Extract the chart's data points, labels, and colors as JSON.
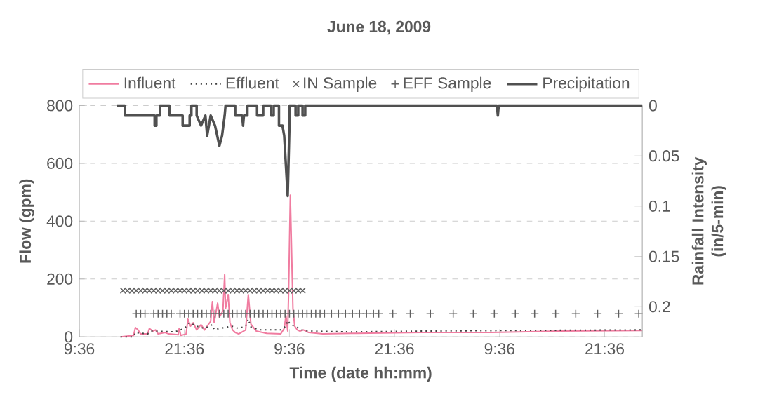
{
  "chart_data": {
    "type": "line",
    "title": "June 18, 2009",
    "xlabel": "Time (date hh:mm)",
    "ylabel": "Flow (gpm)",
    "y2label": "Rainfall Intensity (in/5-min)",
    "xlim": [
      "2009-06-18T09:36",
      "2009-06-21T01:54"
    ],
    "xticks": [
      {
        "value": "2009-06-18T09:36",
        "label": "9:36"
      },
      {
        "value": "2009-06-18T21:36",
        "label": "21:36"
      },
      {
        "value": "2009-06-19T09:36",
        "label": "9:36"
      },
      {
        "value": "2009-06-19T21:36",
        "label": "21:36"
      },
      {
        "value": "2009-06-20T09:36",
        "label": "9:36"
      },
      {
        "value": "2009-06-20T21:36",
        "label": "21:36"
      }
    ],
    "ylim": [
      0,
      800
    ],
    "yticks": [
      0,
      200,
      400,
      600,
      800
    ],
    "y2lim": [
      0.23,
      0
    ],
    "y2ticks": [
      0,
      0.05,
      0.1,
      0.15,
      0.2
    ],
    "grid": "y",
    "legend": "top",
    "series": [
      {
        "name": "Influent",
        "color": "#f07ca0",
        "x": [
          "2009-06-18T14:18",
          "2009-06-18T15:48",
          "2009-06-18T16:00",
          "2009-06-18T16:18",
          "2009-06-18T16:36",
          "2009-06-18T17:24",
          "2009-06-18T17:36",
          "2009-06-18T18:00",
          "2009-06-18T18:18",
          "2009-06-18T18:36",
          "2009-06-18T19:24",
          "2009-06-18T19:48",
          "2009-06-18T20:54",
          "2009-06-18T21:00",
          "2009-06-18T21:12",
          "2009-06-18T21:48",
          "2009-06-18T22:00",
          "2009-06-18T22:18",
          "2009-06-18T22:36",
          "2009-06-18T23:00",
          "2009-06-18T23:30",
          "2009-06-18T23:54",
          "2009-06-19T00:36",
          "2009-06-19T00:48",
          "2009-06-19T01:00",
          "2009-06-19T01:24",
          "2009-06-19T01:36",
          "2009-06-19T02:00",
          "2009-06-19T02:12",
          "2009-06-19T02:18",
          "2009-06-19T02:36",
          "2009-06-19T02:48",
          "2009-06-19T03:06",
          "2009-06-19T03:24",
          "2009-06-19T03:48",
          "2009-06-19T04:36",
          "2009-06-19T04:54",
          "2009-06-19T05:12",
          "2009-06-19T05:48",
          "2009-06-19T07:00",
          "2009-06-19T08:36",
          "2009-06-19T09:00",
          "2009-06-19T09:12",
          "2009-06-19T09:24",
          "2009-06-19T09:30",
          "2009-06-19T09:42",
          "2009-06-19T10:00",
          "2009-06-19T10:12",
          "2009-06-19T10:30",
          "2009-06-19T10:48",
          "2009-06-19T11:12",
          "2009-06-19T11:48",
          "2009-06-19T13:24",
          "2009-06-19T16:36",
          "2009-06-20T00:36",
          "2009-06-20T08:36",
          "2009-06-20T16:36",
          "2009-06-21T01:54"
        ],
        "values": [
          0,
          5,
          32,
          24,
          10,
          10,
          29,
          20,
          24,
          10,
          15,
          10,
          7,
          29,
          5,
          10,
          61,
          37,
          49,
          24,
          42,
          24,
          54,
          122,
          49,
          117,
          68,
          90,
          215,
          98,
          146,
          49,
          24,
          15,
          10,
          24,
          146,
          44,
          20,
          12,
          10,
          29,
          73,
          20,
          146,
          490,
          98,
          37,
          24,
          20,
          24,
          15,
          10,
          12,
          15,
          15,
          20,
          22
        ]
      },
      {
        "name": "Effluent",
        "line_style": "dotted",
        "color": "#404040",
        "x": [
          "2009-06-18T14:18",
          "2009-06-18T15:48",
          "2009-06-18T16:00",
          "2009-06-18T17:24",
          "2009-06-18T17:48",
          "2009-06-18T20:30",
          "2009-06-18T21:36",
          "2009-06-18T22:12",
          "2009-06-18T23:00",
          "2009-06-18T23:54",
          "2009-06-19T00:48",
          "2009-06-19T01:00",
          "2009-06-19T03:00",
          "2009-06-19T03:48",
          "2009-06-19T04:36",
          "2009-06-19T04:54",
          "2009-06-19T05:12",
          "2009-06-19T06:12",
          "2009-06-19T08:36",
          "2009-06-19T09:12",
          "2009-06-19T09:24",
          "2009-06-19T09:42",
          "2009-06-19T10:12",
          "2009-06-19T11:00",
          "2009-06-19T11:48",
          "2009-06-19T16:36",
          "2009-06-20T01:36",
          "2009-06-20T11:36",
          "2009-06-21T01:54"
        ],
        "values": [
          0,
          0,
          15,
          10,
          20,
          17,
          29,
          49,
          37,
          29,
          42,
          25,
          37,
          29,
          37,
          61,
          34,
          24,
          24,
          37,
          56,
          44,
          37,
          24,
          20,
          17,
          20,
          22,
          24
        ]
      },
      {
        "name": "IN Sample",
        "type": "scatter",
        "marker": "cross",
        "color": "#606060",
        "x": [
          "2009-06-18T14:36",
          "2009-06-18T15:06",
          "2009-06-18T15:36",
          "2009-06-18T16:06",
          "2009-06-18T16:36",
          "2009-06-18T17:06",
          "2009-06-18T17:36",
          "2009-06-18T18:06",
          "2009-06-18T18:36",
          "2009-06-18T19:06",
          "2009-06-18T19:36",
          "2009-06-18T20:06",
          "2009-06-18T20:36",
          "2009-06-18T21:06",
          "2009-06-18T21:36",
          "2009-06-18T22:06",
          "2009-06-18T22:36",
          "2009-06-18T23:06",
          "2009-06-18T23:36",
          "2009-06-19T00:06",
          "2009-06-19T00:36",
          "2009-06-19T01:06",
          "2009-06-19T01:36",
          "2009-06-19T02:06",
          "2009-06-19T02:36",
          "2009-06-19T03:06",
          "2009-06-19T03:36",
          "2009-06-19T04:06",
          "2009-06-19T04:36",
          "2009-06-19T05:06",
          "2009-06-19T05:36",
          "2009-06-19T06:06",
          "2009-06-19T06:36",
          "2009-06-19T07:06",
          "2009-06-19T07:36",
          "2009-06-19T08:06",
          "2009-06-19T08:36",
          "2009-06-19T09:06",
          "2009-06-19T09:36",
          "2009-06-19T10:06",
          "2009-06-19T10:36",
          "2009-06-19T11:06"
        ],
        "values": [
          160,
          160,
          160,
          160,
          160,
          160,
          160,
          160,
          160,
          160,
          160,
          160,
          160,
          160,
          160,
          160,
          160,
          160,
          160,
          160,
          160,
          160,
          160,
          160,
          160,
          160,
          160,
          160,
          160,
          160,
          160,
          160,
          160,
          160,
          160,
          160,
          160,
          160,
          160,
          160,
          160,
          160
        ]
      },
      {
        "name": "EFF Sample",
        "type": "scatter",
        "marker": "plus",
        "color": "#606060",
        "x": [
          "2009-06-18T16:06",
          "2009-06-18T16:36",
          "2009-06-18T17:06",
          "2009-06-18T18:06",
          "2009-06-18T18:36",
          "2009-06-18T19:06",
          "2009-06-18T19:36",
          "2009-06-18T20:06",
          "2009-06-18T21:06",
          "2009-06-18T21:36",
          "2009-06-18T22:06",
          "2009-06-18T22:36",
          "2009-06-18T23:06",
          "2009-06-18T23:36",
          "2009-06-19T00:06",
          "2009-06-19T00:36",
          "2009-06-19T01:06",
          "2009-06-19T01:36",
          "2009-06-19T02:06",
          "2009-06-19T02:36",
          "2009-06-19T03:06",
          "2009-06-19T03:36",
          "2009-06-19T04:06",
          "2009-06-19T04:36",
          "2009-06-19T05:06",
          "2009-06-19T05:36",
          "2009-06-19T06:06",
          "2009-06-19T06:36",
          "2009-06-19T07:06",
          "2009-06-19T07:36",
          "2009-06-19T08:06",
          "2009-06-19T08:36",
          "2009-06-19T09:06",
          "2009-06-19T09:36",
          "2009-06-19T10:06",
          "2009-06-19T10:36",
          "2009-06-19T11:06",
          "2009-06-19T11:36",
          "2009-06-19T12:06",
          "2009-06-19T12:36",
          "2009-06-19T13:06",
          "2009-06-19T13:36",
          "2009-06-19T14:24",
          "2009-06-19T15:12",
          "2009-06-19T16:00",
          "2009-06-19T16:48",
          "2009-06-19T17:36",
          "2009-06-19T18:24",
          "2009-06-19T19:12",
          "2009-06-19T19:48",
          "2009-06-19T21:24",
          "2009-06-19T23:24",
          "2009-06-20T01:42",
          "2009-06-20T04:18",
          "2009-06-20T06:36",
          "2009-06-20T09:00",
          "2009-06-20T11:24",
          "2009-06-20T13:36",
          "2009-06-20T16:00",
          "2009-06-20T18:18",
          "2009-06-20T20:48",
          "2009-06-20T23:12",
          "2009-06-21T01:30"
        ],
        "values": [
          80,
          80,
          80,
          80,
          80,
          80,
          80,
          80,
          80,
          80,
          80,
          80,
          80,
          80,
          80,
          80,
          80,
          80,
          80,
          80,
          80,
          80,
          80,
          80,
          80,
          80,
          80,
          80,
          80,
          80,
          80,
          80,
          80,
          80,
          80,
          80,
          80,
          80,
          80,
          80,
          80,
          80,
          80,
          80,
          80,
          80,
          80,
          80,
          80,
          80,
          80,
          80,
          80,
          80,
          80,
          80,
          80,
          80,
          80,
          80,
          80,
          80,
          80
        ]
      },
      {
        "name": "Precipitation",
        "axis": "y2",
        "color": "#505050",
        "x": [
          "2009-06-18T13:54",
          "2009-06-18T14:48",
          "2009-06-18T14:48",
          "2009-06-18T18:12",
          "2009-06-18T18:12",
          "2009-06-18T18:24",
          "2009-06-18T18:24",
          "2009-06-18T18:48",
          "2009-06-18T18:48",
          "2009-06-18T19:54",
          "2009-06-18T19:54",
          "2009-06-18T21:24",
          "2009-06-18T21:24",
          "2009-06-18T22:12",
          "2009-06-18T22:12",
          "2009-06-18T22:24",
          "2009-06-18T22:24",
          "2009-06-18T23:00",
          "2009-06-18T23:00",
          "2009-06-18T23:30",
          "2009-06-19T00:00",
          "2009-06-19T00:12",
          "2009-06-19T00:36",
          "2009-06-19T01:06",
          "2009-06-19T01:36",
          "2009-06-19T01:54",
          "2009-06-19T02:12",
          "2009-06-19T02:18",
          "2009-06-19T03:24",
          "2009-06-19T03:24",
          "2009-06-19T04:12",
          "2009-06-19T04:18",
          "2009-06-19T04:24",
          "2009-06-19T04:48",
          "2009-06-19T04:48",
          "2009-06-19T05:54",
          "2009-06-19T05:54",
          "2009-06-19T06:36",
          "2009-06-19T06:36",
          "2009-06-19T07:30",
          "2009-06-19T07:30",
          "2009-06-19T07:48",
          "2009-06-19T07:48",
          "2009-06-19T08:24",
          "2009-06-19T08:24",
          "2009-06-19T08:48",
          "2009-06-19T09:00",
          "2009-06-19T09:24",
          "2009-06-19T09:36",
          "2009-06-19T09:36",
          "2009-06-19T10:18",
          "2009-06-19T10:18",
          "2009-06-19T10:36",
          "2009-06-19T10:36",
          "2009-06-19T11:06",
          "2009-06-19T11:06",
          "2009-06-19T11:24",
          "2009-06-19T11:24",
          "2009-06-20T09:18",
          "2009-06-20T09:24",
          "2009-06-20T09:30",
          "2009-06-21T01:54"
        ],
        "values": [
          0,
          0,
          0.01,
          0.01,
          0.02,
          0.02,
          0.01,
          0.01,
          0,
          0,
          0.01,
          0.01,
          0.02,
          0.02,
          0.01,
          0.01,
          0,
          0,
          0.01,
          0.02,
          0.01,
          0.03,
          0.01,
          0.02,
          0.04,
          0.03,
          0.01,
          0,
          0,
          0.01,
          0.01,
          0.02,
          0.01,
          0.01,
          0,
          0,
          0.01,
          0.01,
          0,
          0,
          0.01,
          0.01,
          0,
          0,
          0.02,
          0.02,
          0.03,
          0.09,
          0.02,
          0,
          0,
          0.01,
          0.01,
          0,
          0,
          0.01,
          0.01,
          0,
          0,
          0.01,
          0,
          0
        ]
      }
    ]
  }
}
